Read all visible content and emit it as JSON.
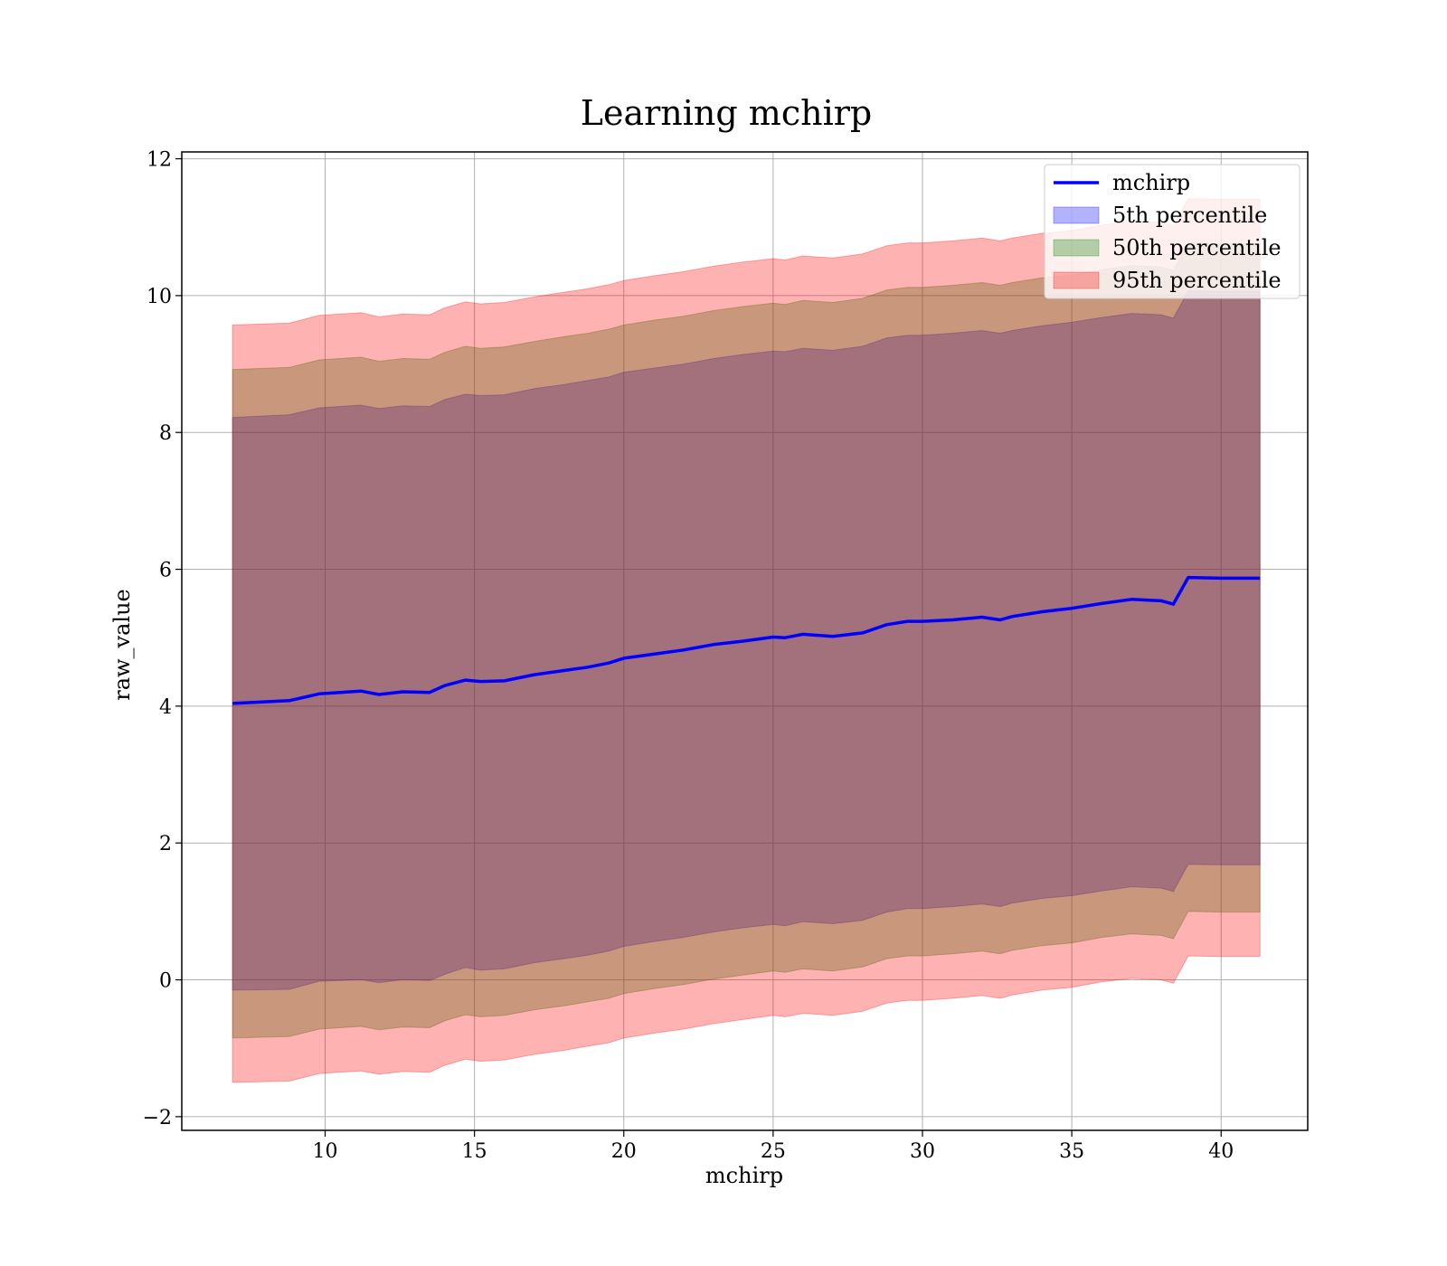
{
  "chart_data": {
    "type": "area",
    "title": "Learning mchirp",
    "xlabel": "mchirp",
    "ylabel": "raw_value",
    "xlim": [
      5.2,
      42.9
    ],
    "ylim": [
      -2.2,
      12.1
    ],
    "xticks": [
      10,
      15,
      20,
      25,
      30,
      35,
      40
    ],
    "yticks": [
      -2,
      0,
      2,
      4,
      6,
      8,
      10,
      12
    ],
    "grid": true,
    "legend_position": "top-right",
    "colors": {
      "line": "#0000ff",
      "band_5": "#0000ff",
      "band_50": "#008000",
      "band_95": "#ff0000"
    },
    "x": [
      6.9,
      8.8,
      9.8,
      11.2,
      11.8,
      12.6,
      13.5,
      14.0,
      14.7,
      15.2,
      16.0,
      17.0,
      18.0,
      18.8,
      19.5,
      20.0,
      21.0,
      22.0,
      23.0,
      24.0,
      25.0,
      25.4,
      26.0,
      27.0,
      28.0,
      28.8,
      29.5,
      30.0,
      31.0,
      32.0,
      32.6,
      33.0,
      34.0,
      35.0,
      36.0,
      37.0,
      38.0,
      38.4,
      38.9,
      40.0,
      41.3
    ],
    "series": [
      {
        "name": "mchirp",
        "kind": "line",
        "values": [
          4.04,
          4.08,
          4.18,
          4.22,
          4.17,
          4.21,
          4.2,
          4.3,
          4.38,
          4.36,
          4.37,
          4.46,
          4.52,
          4.57,
          4.63,
          4.7,
          4.76,
          4.82,
          4.9,
          4.95,
          5.01,
          5.0,
          5.05,
          5.02,
          5.07,
          5.19,
          5.24,
          5.24,
          5.26,
          5.3,
          5.26,
          5.31,
          5.38,
          5.43,
          5.5,
          5.56,
          5.54,
          5.49,
          5.88,
          5.87,
          5.87
        ]
      },
      {
        "name": "5th percentile",
        "kind": "band",
        "lower": [
          -0.15,
          -0.14,
          -0.02,
          0.0,
          -0.04,
          0.0,
          -0.01,
          0.08,
          0.18,
          0.14,
          0.16,
          0.25,
          0.31,
          0.36,
          0.42,
          0.49,
          0.56,
          0.62,
          0.7,
          0.76,
          0.81,
          0.79,
          0.85,
          0.82,
          0.87,
          0.99,
          1.04,
          1.04,
          1.07,
          1.11,
          1.07,
          1.12,
          1.19,
          1.23,
          1.3,
          1.36,
          1.34,
          1.29,
          1.69,
          1.68,
          1.68
        ],
        "upper": [
          8.22,
          8.26,
          8.36,
          8.4,
          8.35,
          8.39,
          8.38,
          8.48,
          8.56,
          8.54,
          8.55,
          8.64,
          8.7,
          8.76,
          8.81,
          8.88,
          8.94,
          9.0,
          9.08,
          9.14,
          9.19,
          9.18,
          9.23,
          9.2,
          9.26,
          9.38,
          9.42,
          9.42,
          9.45,
          9.49,
          9.45,
          9.49,
          9.56,
          9.61,
          9.68,
          9.74,
          9.72,
          9.67,
          10.07,
          10.06,
          10.06
        ]
      },
      {
        "name": "50th percentile",
        "kind": "band",
        "lower": [
          -0.85,
          -0.83,
          -0.72,
          -0.68,
          -0.73,
          -0.69,
          -0.7,
          -0.6,
          -0.51,
          -0.54,
          -0.52,
          -0.44,
          -0.38,
          -0.32,
          -0.27,
          -0.2,
          -0.13,
          -0.07,
          0.01,
          0.07,
          0.13,
          0.11,
          0.16,
          0.13,
          0.19,
          0.31,
          0.35,
          0.35,
          0.38,
          0.42,
          0.38,
          0.43,
          0.5,
          0.54,
          0.62,
          0.67,
          0.65,
          0.6,
          1.0,
          0.99,
          0.99
        ],
        "upper": [
          8.92,
          8.95,
          9.06,
          9.1,
          9.04,
          9.08,
          9.07,
          9.17,
          9.26,
          9.23,
          9.25,
          9.33,
          9.4,
          9.45,
          9.51,
          9.57,
          9.64,
          9.7,
          9.78,
          9.84,
          9.89,
          9.87,
          9.93,
          9.9,
          9.96,
          10.08,
          10.12,
          10.12,
          10.15,
          10.19,
          10.15,
          10.19,
          10.26,
          10.3,
          10.38,
          10.44,
          10.42,
          10.37,
          10.77,
          10.76,
          10.76
        ]
      },
      {
        "name": "95th percentile",
        "kind": "band",
        "lower": [
          -1.5,
          -1.48,
          -1.37,
          -1.33,
          -1.38,
          -1.34,
          -1.35,
          -1.25,
          -1.16,
          -1.19,
          -1.17,
          -1.09,
          -1.03,
          -0.97,
          -0.92,
          -0.85,
          -0.78,
          -0.72,
          -0.64,
          -0.58,
          -0.52,
          -0.54,
          -0.49,
          -0.52,
          -0.46,
          -0.34,
          -0.3,
          -0.3,
          -0.27,
          -0.23,
          -0.27,
          -0.22,
          -0.15,
          -0.11,
          -0.03,
          0.02,
          0.0,
          -0.05,
          0.35,
          0.34,
          0.34
        ],
        "upper": [
          9.57,
          9.6,
          9.71,
          9.75,
          9.69,
          9.73,
          9.72,
          9.82,
          9.91,
          9.88,
          9.9,
          9.98,
          10.05,
          10.1,
          10.16,
          10.22,
          10.29,
          10.35,
          10.43,
          10.49,
          10.54,
          10.52,
          10.58,
          10.55,
          10.61,
          10.73,
          10.77,
          10.77,
          10.8,
          10.84,
          10.8,
          10.84,
          10.91,
          10.95,
          11.03,
          11.09,
          11.07,
          11.02,
          11.42,
          11.41,
          11.41
        ]
      }
    ]
  }
}
